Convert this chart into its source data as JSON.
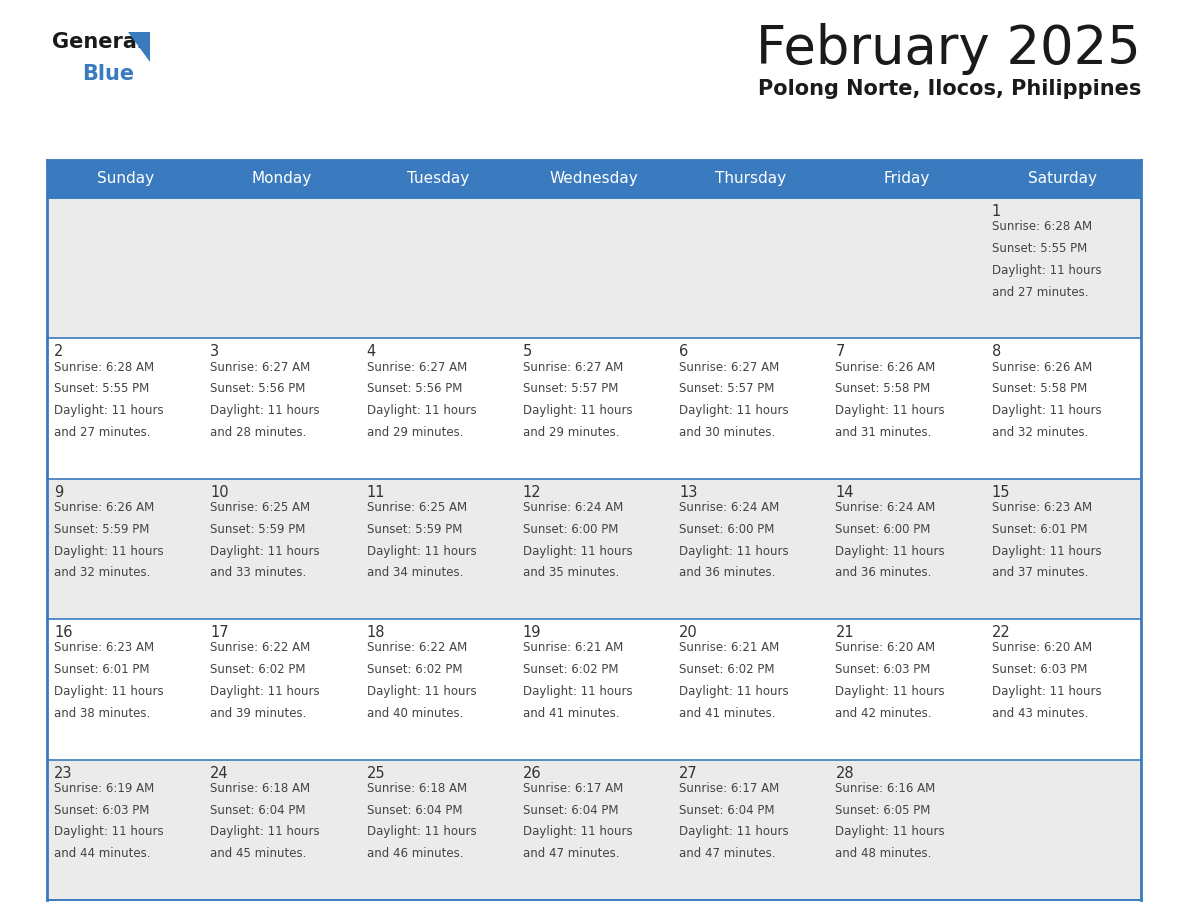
{
  "title": "February 2025",
  "subtitle": "Polong Norte, Ilocos, Philippines",
  "header_color": "#3a7abf",
  "header_text_color": "#ffffff",
  "day_names": [
    "Sunday",
    "Monday",
    "Tuesday",
    "Wednesday",
    "Thursday",
    "Friday",
    "Saturday"
  ],
  "title_fontsize": 38,
  "subtitle_fontsize": 15,
  "bg_color": "#ffffff",
  "cell_bg_odd": "#ebebeb",
  "cell_bg_even": "#ffffff",
  "grid_line_color": "#3a7abf",
  "day_number_color": "#333333",
  "day_text_color": "#444444",
  "calendar_data": [
    [
      null,
      null,
      null,
      null,
      null,
      null,
      {
        "day": 1,
        "sunrise": "6:28 AM",
        "sunset": "5:55 PM",
        "daylight_hrs": "11 hours",
        "daylight_min": "and 27 minutes."
      }
    ],
    [
      {
        "day": 2,
        "sunrise": "6:28 AM",
        "sunset": "5:55 PM",
        "daylight_hrs": "11 hours",
        "daylight_min": "and 27 minutes."
      },
      {
        "day": 3,
        "sunrise": "6:27 AM",
        "sunset": "5:56 PM",
        "daylight_hrs": "11 hours",
        "daylight_min": "and 28 minutes."
      },
      {
        "day": 4,
        "sunrise": "6:27 AM",
        "sunset": "5:56 PM",
        "daylight_hrs": "11 hours",
        "daylight_min": "and 29 minutes."
      },
      {
        "day": 5,
        "sunrise": "6:27 AM",
        "sunset": "5:57 PM",
        "daylight_hrs": "11 hours",
        "daylight_min": "and 29 minutes."
      },
      {
        "day": 6,
        "sunrise": "6:27 AM",
        "sunset": "5:57 PM",
        "daylight_hrs": "11 hours",
        "daylight_min": "and 30 minutes."
      },
      {
        "day": 7,
        "sunrise": "6:26 AM",
        "sunset": "5:58 PM",
        "daylight_hrs": "11 hours",
        "daylight_min": "and 31 minutes."
      },
      {
        "day": 8,
        "sunrise": "6:26 AM",
        "sunset": "5:58 PM",
        "daylight_hrs": "11 hours",
        "daylight_min": "and 32 minutes."
      }
    ],
    [
      {
        "day": 9,
        "sunrise": "6:26 AM",
        "sunset": "5:59 PM",
        "daylight_hrs": "11 hours",
        "daylight_min": "and 32 minutes."
      },
      {
        "day": 10,
        "sunrise": "6:25 AM",
        "sunset": "5:59 PM",
        "daylight_hrs": "11 hours",
        "daylight_min": "and 33 minutes."
      },
      {
        "day": 11,
        "sunrise": "6:25 AM",
        "sunset": "5:59 PM",
        "daylight_hrs": "11 hours",
        "daylight_min": "and 34 minutes."
      },
      {
        "day": 12,
        "sunrise": "6:24 AM",
        "sunset": "6:00 PM",
        "daylight_hrs": "11 hours",
        "daylight_min": "and 35 minutes."
      },
      {
        "day": 13,
        "sunrise": "6:24 AM",
        "sunset": "6:00 PM",
        "daylight_hrs": "11 hours",
        "daylight_min": "and 36 minutes."
      },
      {
        "day": 14,
        "sunrise": "6:24 AM",
        "sunset": "6:00 PM",
        "daylight_hrs": "11 hours",
        "daylight_min": "and 36 minutes."
      },
      {
        "day": 15,
        "sunrise": "6:23 AM",
        "sunset": "6:01 PM",
        "daylight_hrs": "11 hours",
        "daylight_min": "and 37 minutes."
      }
    ],
    [
      {
        "day": 16,
        "sunrise": "6:23 AM",
        "sunset": "6:01 PM",
        "daylight_hrs": "11 hours",
        "daylight_min": "and 38 minutes."
      },
      {
        "day": 17,
        "sunrise": "6:22 AM",
        "sunset": "6:02 PM",
        "daylight_hrs": "11 hours",
        "daylight_min": "and 39 minutes."
      },
      {
        "day": 18,
        "sunrise": "6:22 AM",
        "sunset": "6:02 PM",
        "daylight_hrs": "11 hours",
        "daylight_min": "and 40 minutes."
      },
      {
        "day": 19,
        "sunrise": "6:21 AM",
        "sunset": "6:02 PM",
        "daylight_hrs": "11 hours",
        "daylight_min": "and 41 minutes."
      },
      {
        "day": 20,
        "sunrise": "6:21 AM",
        "sunset": "6:02 PM",
        "daylight_hrs": "11 hours",
        "daylight_min": "and 41 minutes."
      },
      {
        "day": 21,
        "sunrise": "6:20 AM",
        "sunset": "6:03 PM",
        "daylight_hrs": "11 hours",
        "daylight_min": "and 42 minutes."
      },
      {
        "day": 22,
        "sunrise": "6:20 AM",
        "sunset": "6:03 PM",
        "daylight_hrs": "11 hours",
        "daylight_min": "and 43 minutes."
      }
    ],
    [
      {
        "day": 23,
        "sunrise": "6:19 AM",
        "sunset": "6:03 PM",
        "daylight_hrs": "11 hours",
        "daylight_min": "and 44 minutes."
      },
      {
        "day": 24,
        "sunrise": "6:18 AM",
        "sunset": "6:04 PM",
        "daylight_hrs": "11 hours",
        "daylight_min": "and 45 minutes."
      },
      {
        "day": 25,
        "sunrise": "6:18 AM",
        "sunset": "6:04 PM",
        "daylight_hrs": "11 hours",
        "daylight_min": "and 46 minutes."
      },
      {
        "day": 26,
        "sunrise": "6:17 AM",
        "sunset": "6:04 PM",
        "daylight_hrs": "11 hours",
        "daylight_min": "and 47 minutes."
      },
      {
        "day": 27,
        "sunrise": "6:17 AM",
        "sunset": "6:04 PM",
        "daylight_hrs": "11 hours",
        "daylight_min": "and 47 minutes."
      },
      {
        "day": 28,
        "sunrise": "6:16 AM",
        "sunset": "6:05 PM",
        "daylight_hrs": "11 hours",
        "daylight_min": "and 48 minutes."
      },
      null
    ]
  ]
}
